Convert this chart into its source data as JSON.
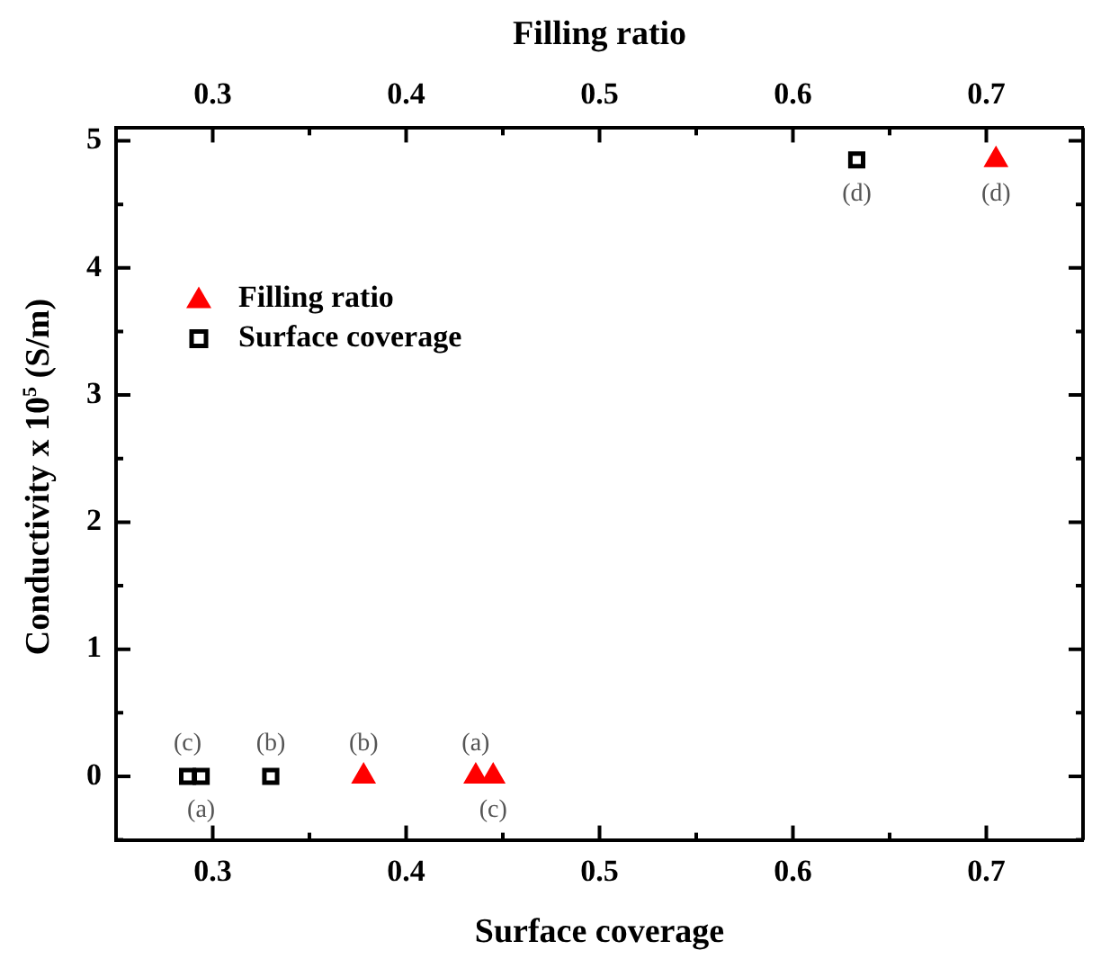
{
  "chart_data": {
    "type": "scatter",
    "xlabel": "Surface coverage",
    "x2label": "Filling ratio",
    "ylabel": "Conductivity x 10$^{5}$ (S/m)",
    "xlim": [
      0.25,
      0.75
    ],
    "xticks": [
      {
        "value": 0.25,
        "label": null
      },
      0.3,
      {
        "value": 0.35,
        "label": null
      },
      0.4,
      {
        "value": 0.45,
        "label": null
      },
      0.5,
      {
        "value": 0.55,
        "label": null
      },
      0.6,
      {
        "value": 0.65,
        "label": null
      },
      0.7,
      {
        "value": 0.75,
        "label": null
      }
    ],
    "x2lim": [
      0.25,
      0.75
    ],
    "x2ticks": [
      {
        "value": 0.25,
        "label": null
      },
      0.3,
      {
        "value": 0.35,
        "label": null
      },
      0.4,
      {
        "value": 0.45,
        "label": null
      },
      0.5,
      {
        "value": 0.55,
        "label": null
      },
      0.6,
      {
        "value": 0.65,
        "label": null
      },
      0.7,
      {
        "value": 0.75,
        "label": null
      }
    ],
    "ylim": [
      -0.5,
      5.1
    ],
    "yticks": [
      {
        "value": -0.5,
        "label": null
      },
      0,
      {
        "value": 0.5,
        "label": null
      },
      1,
      {
        "value": 1.5,
        "label": null
      },
      2,
      {
        "value": 2.5,
        "label": null
      },
      3,
      {
        "value": 3.5,
        "label": null
      },
      4,
      {
        "value": 4.5,
        "label": null
      },
      5
    ],
    "grid": false,
    "legend": "top left",
    "series": [
      {
        "name": "Filling ratio",
        "color": "#ff0000",
        "marker": "triangle",
        "axis": "x2",
        "x": [
          0.378,
          0.436,
          0.445,
          0.705
        ],
        "values": [
          0,
          0,
          0,
          4.85
        ]
      },
      {
        "name": "Surface coverage",
        "color": "#000000",
        "marker": "square",
        "x": [
          0.287,
          0.294,
          0.33,
          0.633
        ],
        "values": [
          0,
          0,
          0,
          4.85
        ]
      }
    ],
    "annotations": [
      {
        "text": "(c)",
        "x": 0.287,
        "y": 0
      },
      {
        "text": "(a)",
        "x": 0.294,
        "y": 0
      },
      {
        "text": "(b)",
        "x": 0.33,
        "y": 0
      },
      {
        "text": "(d)",
        "x": 0.633,
        "y": 4.85
      },
      {
        "text": "(b)",
        "x": 0.378,
        "y": 0
      },
      {
        "text": "(a)",
        "x": 0.436,
        "y": 0
      },
      {
        "text": "(c)",
        "x": 0.445,
        "y": 0
      },
      {
        "text": "(d)",
        "x": 0.705,
        "y": 4.85
      }
    ]
  }
}
